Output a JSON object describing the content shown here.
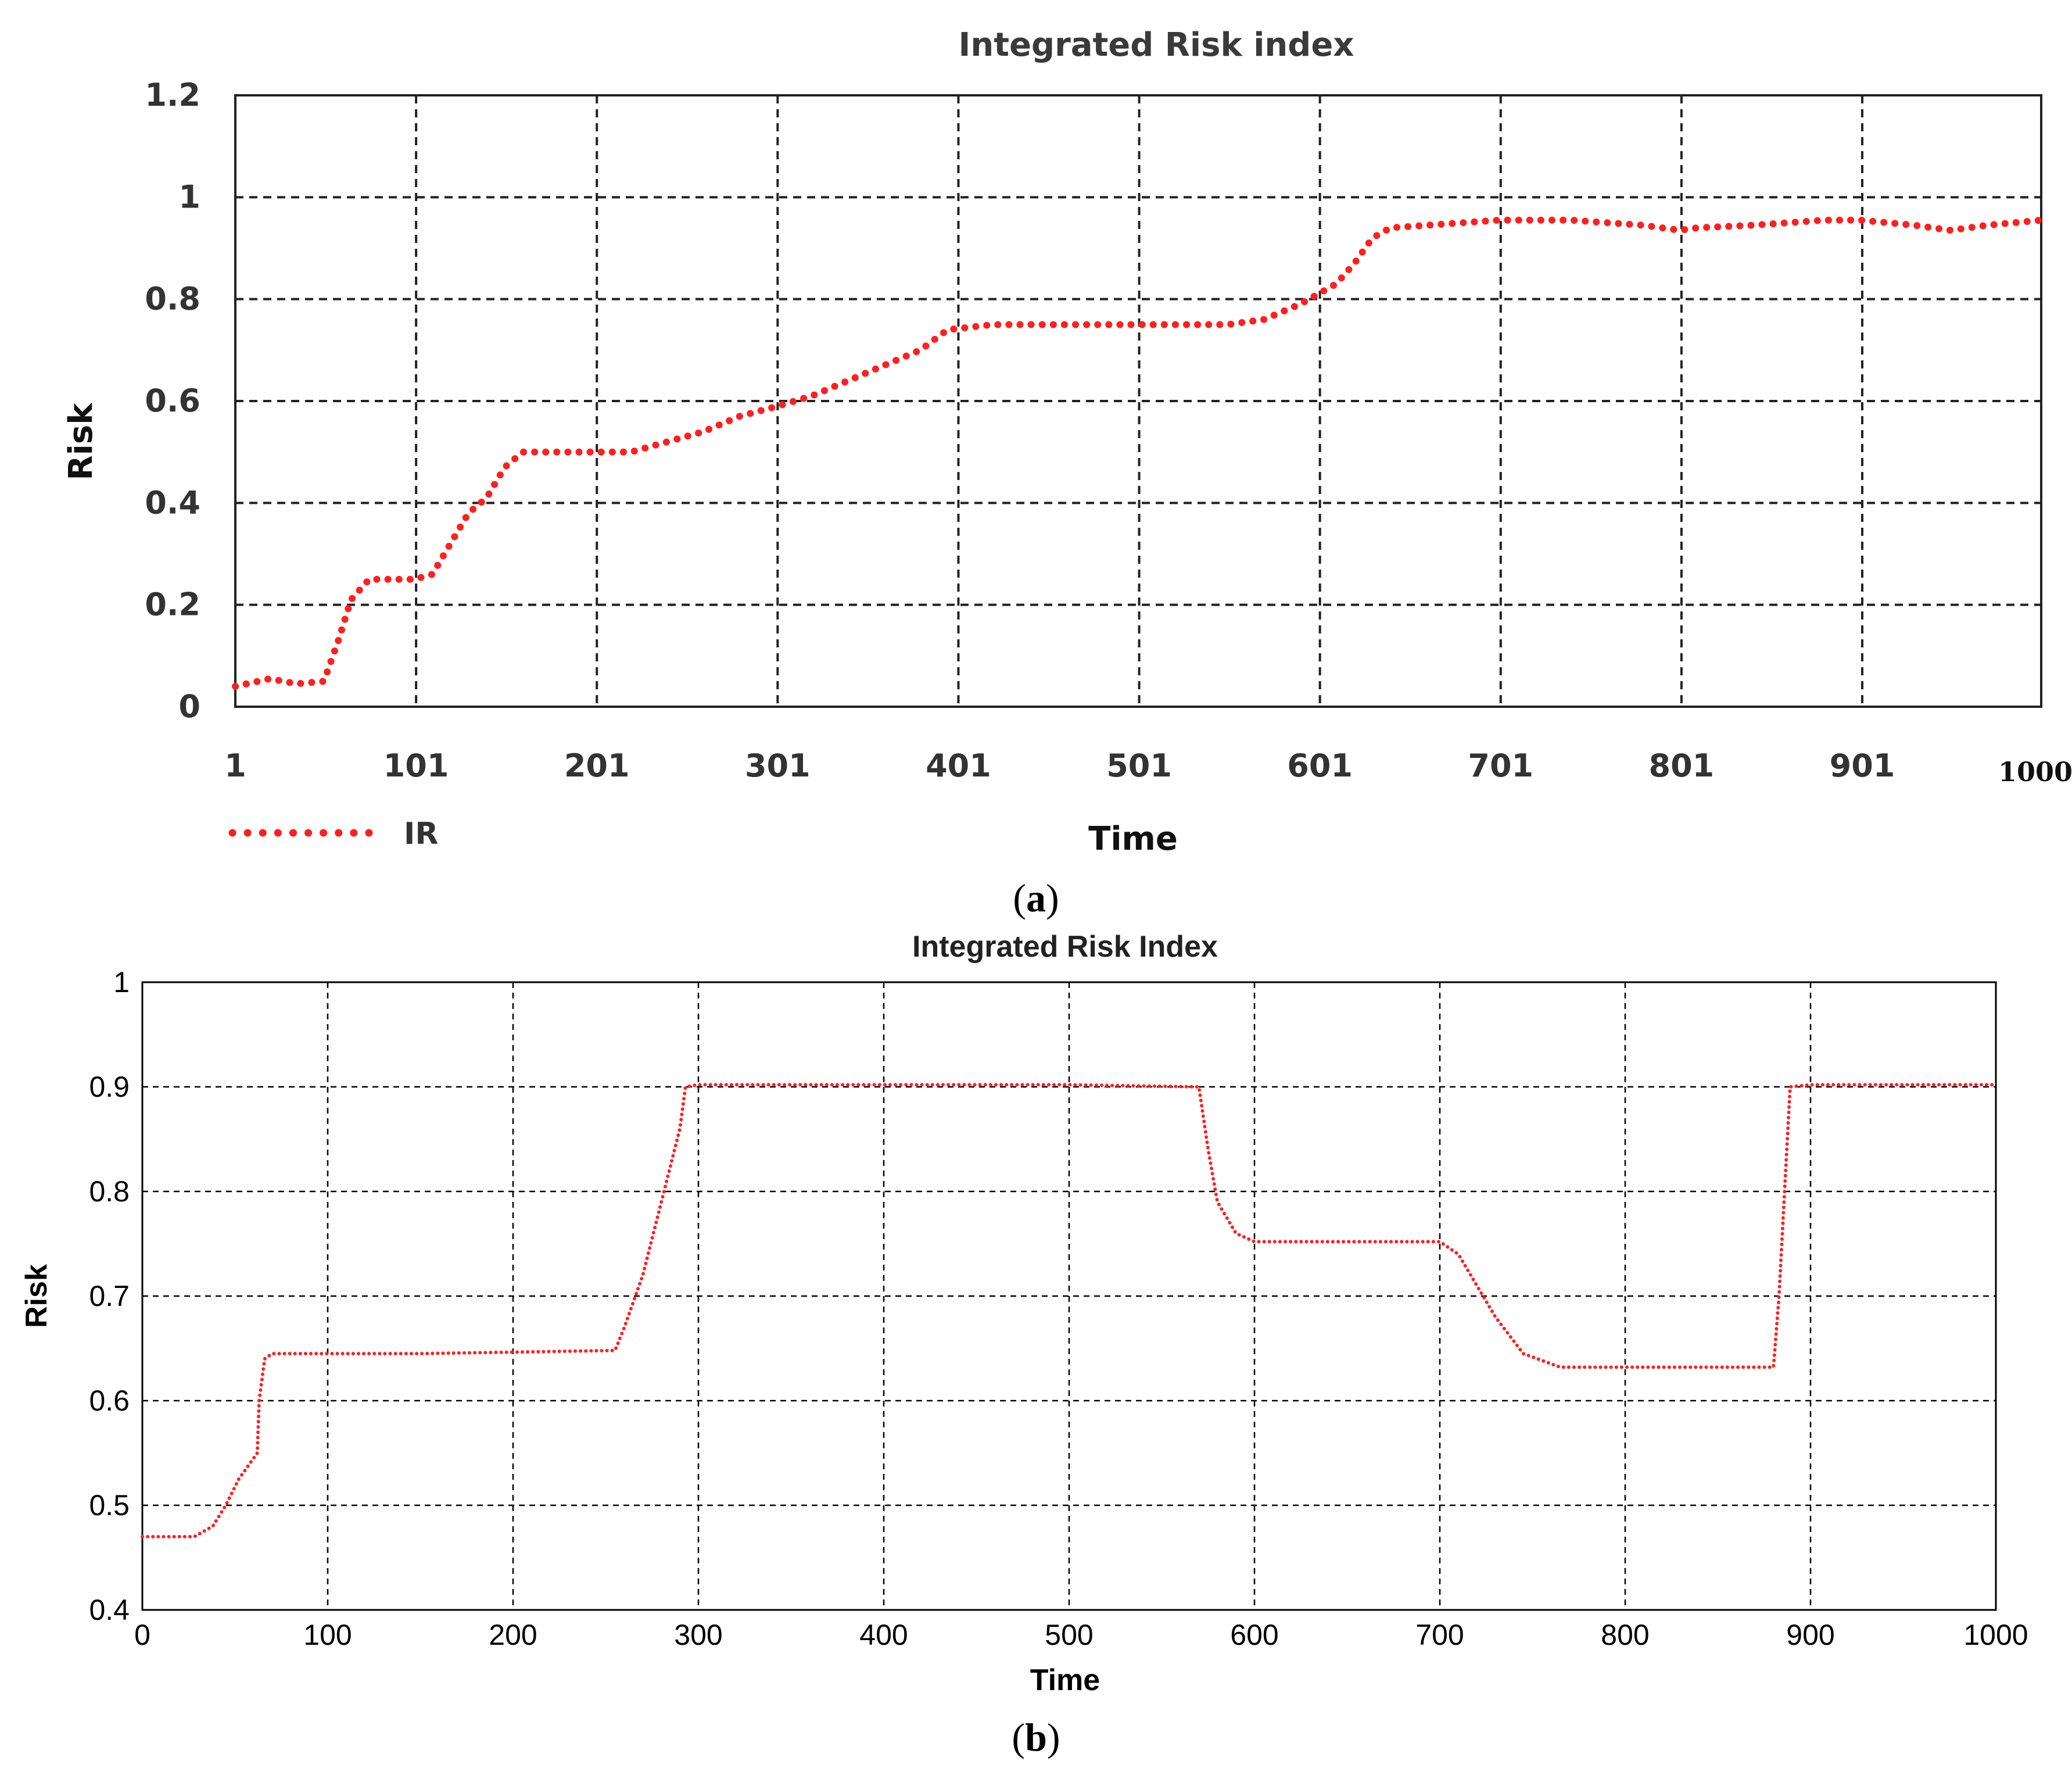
{
  "chart_data": [
    {
      "panel": "a",
      "type": "line",
      "title": "Integrated Risk index",
      "xlabel": "Time",
      "ylabel": "Risk",
      "xlim": [
        1,
        1000
      ],
      "ylim": [
        0,
        1.2
      ],
      "xticks": [
        "1",
        "101",
        "201",
        "301",
        "401",
        "501",
        "601",
        "701",
        "801",
        "901",
        "1000"
      ],
      "xtick_values": [
        1,
        101,
        201,
        301,
        401,
        501,
        601,
        701,
        801,
        901,
        1000
      ],
      "yticks": [
        "0",
        "0.2",
        "0.4",
        "0.6",
        "0.8",
        "1",
        "1.2"
      ],
      "ytick_values": [
        0,
        0.2,
        0.4,
        0.6,
        0.8,
        1.0,
        1.2
      ],
      "grid": true,
      "legend": "bottom-left",
      "line_style": "dotted",
      "color": "#ff1f1f",
      "series": [
        {
          "name": "IR",
          "x": [
            1,
            20,
            35,
            50,
            58,
            65,
            75,
            100,
            110,
            120,
            130,
            140,
            150,
            160,
            170,
            200,
            220,
            240,
            260,
            280,
            301,
            320,
            340,
            360,
            380,
            395,
            420,
            450,
            500,
            550,
            570,
            590,
            610,
            620,
            630,
            640,
            660,
            680,
            700,
            740,
            780,
            800,
            810,
            840,
            860,
            880,
            900,
            930,
            950,
            970,
            1000
          ],
          "y": [
            0.04,
            0.055,
            0.045,
            0.05,
            0.13,
            0.21,
            0.25,
            0.25,
            0.26,
            0.32,
            0.38,
            0.41,
            0.47,
            0.5,
            0.5,
            0.5,
            0.5,
            0.52,
            0.54,
            0.57,
            0.59,
            0.61,
            0.64,
            0.67,
            0.7,
            0.74,
            0.75,
            0.75,
            0.75,
            0.75,
            0.76,
            0.79,
            0.83,
            0.87,
            0.92,
            0.94,
            0.945,
            0.95,
            0.955,
            0.955,
            0.945,
            0.935,
            0.94,
            0.945,
            0.95,
            0.955,
            0.955,
            0.945,
            0.935,
            0.945,
            0.955
          ]
        }
      ]
    },
    {
      "panel": "b",
      "type": "line",
      "title": "Integrated Risk Index",
      "xlabel": "Time",
      "ylabel": "Risk",
      "xlim": [
        0,
        1000
      ],
      "ylim": [
        0.4,
        1
      ],
      "xticks": [
        "0",
        "100",
        "200",
        "300",
        "400",
        "500",
        "600",
        "700",
        "800",
        "900",
        "1000"
      ],
      "xtick_values": [
        0,
        100,
        200,
        300,
        400,
        500,
        600,
        700,
        800,
        900,
        1000
      ],
      "yticks": [
        "0.4",
        "0.5",
        "0.6",
        "0.7",
        "0.8",
        "0.9",
        "1"
      ],
      "ytick_values": [
        0.4,
        0.5,
        0.6,
        0.7,
        0.8,
        0.9,
        1.0
      ],
      "grid": true,
      "legend": "none",
      "line_style": "dotted",
      "color": "#ff1f1f",
      "series": [
        {
          "x": [
            0,
            28,
            38,
            45,
            52,
            58,
            62,
            63,
            66,
            70,
            150,
            255,
            260,
            270,
            280,
            290,
            293,
            300,
            400,
            500,
            570,
            575,
            580,
            590,
            600,
            700,
            710,
            720,
            730,
            745,
            765,
            800,
            880,
            883,
            886,
            889,
            900,
            1000
          ],
          "y": [
            0.47,
            0.47,
            0.48,
            0.5,
            0.525,
            0.54,
            0.55,
            0.6,
            0.64,
            0.645,
            0.645,
            0.648,
            0.67,
            0.72,
            0.79,
            0.86,
            0.9,
            0.902,
            0.902,
            0.902,
            0.9,
            0.84,
            0.79,
            0.76,
            0.752,
            0.752,
            0.74,
            0.71,
            0.68,
            0.645,
            0.632,
            0.632,
            0.632,
            0.7,
            0.8,
            0.9,
            0.902,
            0.902
          ]
        }
      ]
    }
  ],
  "captions": {
    "a_letter": "a",
    "b_letter": "b",
    "open_paren": "(",
    "close_paren": ")"
  }
}
